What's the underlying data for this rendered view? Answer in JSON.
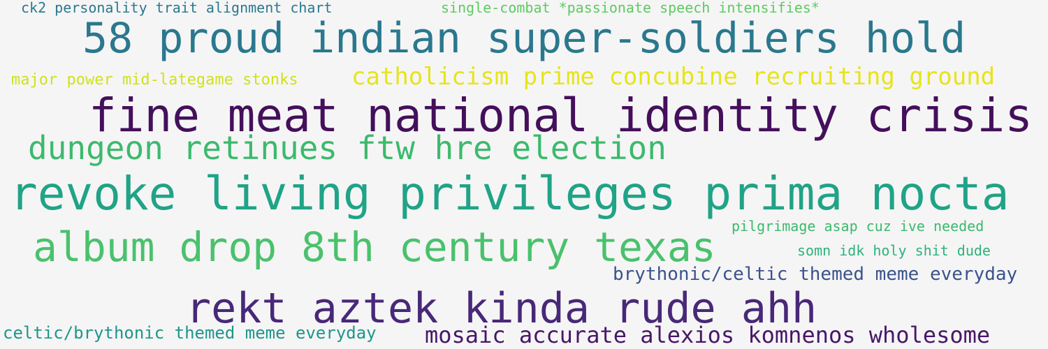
{
  "background": "#f5f5f5",
  "words": [
    {
      "text": "ck2 personality trait alignment chart",
      "color": "#2a788e"
    },
    {
      "text": "single-combat *passionate speech intensifies*",
      "color": "#5ec962"
    },
    {
      "text": "58 proud indian super-soldiers hold",
      "color": "#2a788e"
    },
    {
      "text": "major power mid-lategame stonks",
      "color": "#d0e11c"
    },
    {
      "text": "catholicism prime concubine recruiting ground",
      "color": "#e7e419"
    },
    {
      "text": "fine meat national identity crisis",
      "color": "#440f5b"
    },
    {
      "text": "dungeon retinues ftw hre election",
      "color": "#3cb96d"
    },
    {
      "text": "revoke living privileges prima nocta",
      "color": "#20a386"
    },
    {
      "text": "pilgrimage asap cuz ive needed",
      "color": "#3cb96d"
    },
    {
      "text": "album drop 8th century texas",
      "color": "#4ac16d"
    },
    {
      "text": "somn idk holy shit dude",
      "color": "#2db27d"
    },
    {
      "text": "brythonic/celtic themed meme everyday",
      "color": "#3b528b"
    },
    {
      "text": "rekt aztek kinda rude ahh",
      "color": "#482878"
    },
    {
      "text": "celtic/brythonic themed meme everyday",
      "color": "#1f958b"
    },
    {
      "text": "mosaic accurate alexios komnenos wholesome",
      "color": "#481768"
    }
  ]
}
